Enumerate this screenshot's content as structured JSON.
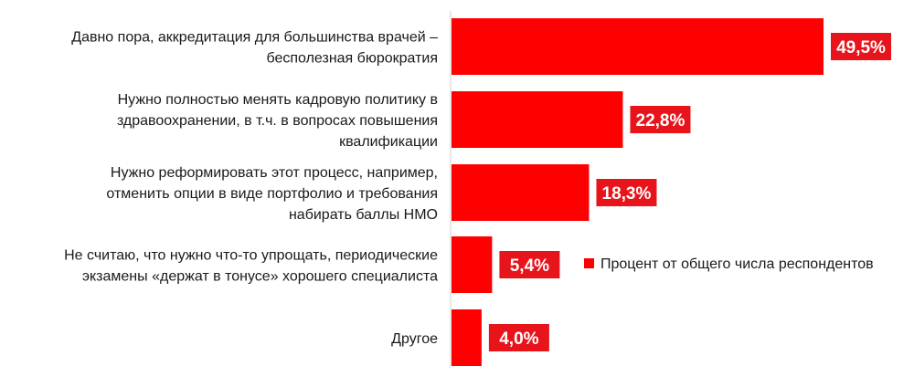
{
  "chart_data": {
    "type": "bar",
    "orientation": "horizontal",
    "title": "",
    "xlabel": "",
    "ylabel": "",
    "xlim": [
      0,
      55
    ],
    "grid": false,
    "legend_position": "right",
    "bar_color": "#ff0000",
    "label_bg_color": "#e8141c",
    "series": [
      {
        "name": "Процент от общего числа респондентов",
        "values": [
          49.5,
          22.8,
          18.3,
          5.4,
          4.0
        ]
      }
    ],
    "categories": [
      [
        "Давно пора, аккредитация для большинства врачей –",
        "бесполезная бюрократия"
      ],
      [
        "Нужно полностью менять кадровую политику в",
        "здравоохранении, в т.ч. в вопросах повышения",
        "квалификации"
      ],
      [
        "Нужно реформировать этот процесс, например,",
        "отменить опции в виде портфолио и требования",
        "набирать баллы НМО"
      ],
      [
        "Не считаю, что нужно что-то упрощать, периодические",
        "экзамены «держат в тонусе» хорошего специалиста"
      ],
      [
        "Другое"
      ]
    ],
    "data_labels": [
      "49,5%",
      "22,8%",
      "18,3%",
      "5,4%",
      "4,0%"
    ]
  }
}
